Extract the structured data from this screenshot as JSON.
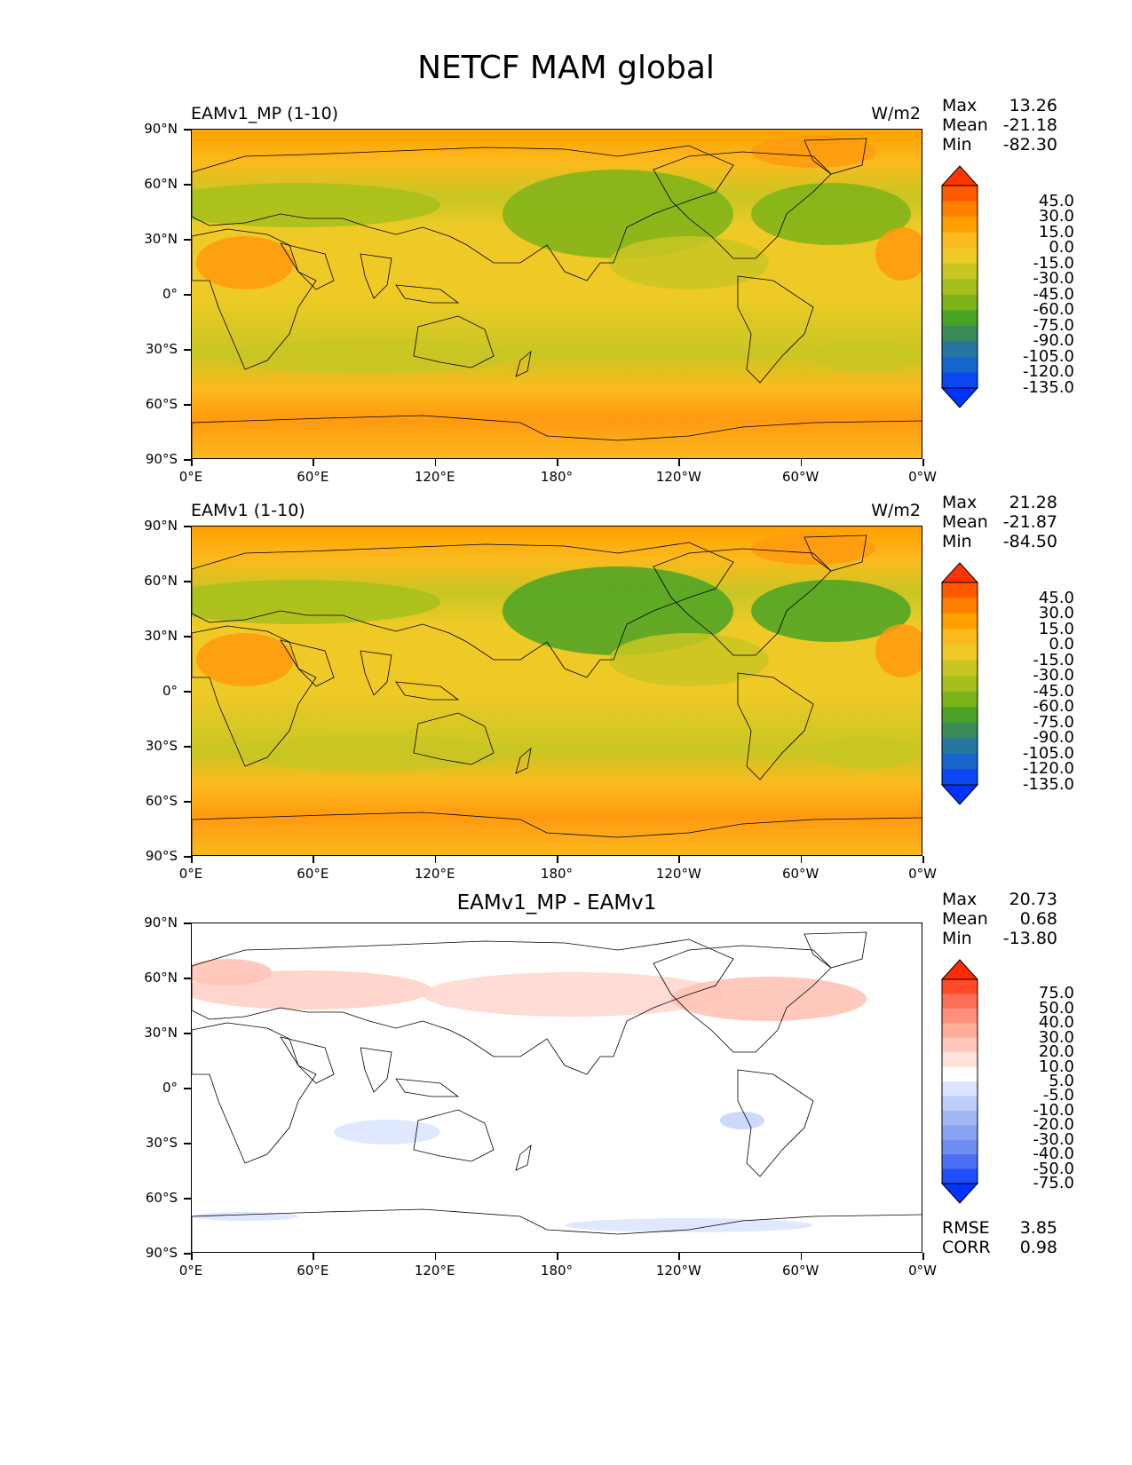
{
  "figure": {
    "title": "NETCF MAM global"
  },
  "axes": {
    "lat_labels": [
      "90°N",
      "60°N",
      "30°N",
      "0°",
      "30°S",
      "60°S",
      "90°S"
    ],
    "lon_labels": [
      "0°E",
      "60°E",
      "120°E",
      "180°",
      "120°W",
      "60°W",
      "0°W"
    ]
  },
  "panels": [
    {
      "title_left": "EAMv1_MP (1-10)",
      "title_right": "W/m2",
      "stats": [
        {
          "label": "Max",
          "value": "13.26"
        },
        {
          "label": "Mean",
          "value": "-21.18"
        },
        {
          "label": "Min",
          "value": "-82.30"
        }
      ],
      "colorbar_labels": [
        "45.0",
        "30.0",
        "15.0",
        "0.0",
        "-15.0",
        "-30.0",
        "-45.0",
        "-60.0",
        "-75.0",
        "-90.0",
        "-105.0",
        "-120.0",
        "-135.0"
      ],
      "colorbar_colors": [
        "#ff3300",
        "#ff5a00",
        "#ff7f00",
        "#ffa000",
        "#fbba1e",
        "#efca26",
        "#c9c623",
        "#a6bf1c",
        "#7db319",
        "#4aa326",
        "#3a8a5a",
        "#2677a0",
        "#1565cc",
        "#0b46f0",
        "#0033ff"
      ]
    },
    {
      "title_left": "EAMv1 (1-10)",
      "title_right": "W/m2",
      "stats": [
        {
          "label": "Max",
          "value": "21.28"
        },
        {
          "label": "Mean",
          "value": "-21.87"
        },
        {
          "label": "Min",
          "value": "-84.50"
        }
      ],
      "colorbar_labels": [
        "45.0",
        "30.0",
        "15.0",
        "0.0",
        "-15.0",
        "-30.0",
        "-45.0",
        "-60.0",
        "-75.0",
        "-90.0",
        "-105.0",
        "-120.0",
        "-135.0"
      ],
      "colorbar_colors": [
        "#ff3300",
        "#ff5a00",
        "#ff7f00",
        "#ffa000",
        "#fbba1e",
        "#efca26",
        "#c9c623",
        "#a6bf1c",
        "#7db319",
        "#4aa326",
        "#3a8a5a",
        "#2677a0",
        "#1565cc",
        "#0b46f0",
        "#0033ff"
      ]
    },
    {
      "title_center": "EAMv1_MP - EAMv1",
      "stats": [
        {
          "label": "Max",
          "value": "20.73"
        },
        {
          "label": "Mean",
          "value": "0.68"
        },
        {
          "label": "Min",
          "value": "-13.80"
        }
      ],
      "colorbar_labels": [
        "75.0",
        "50.0",
        "40.0",
        "30.0",
        "20.0",
        "10.0",
        "5.0",
        "-5.0",
        "-10.0",
        "-20.0",
        "-30.0",
        "-40.0",
        "-50.0",
        "-75.0"
      ],
      "colorbar_colors": [
        "#ff2a00",
        "#ff4a2a",
        "#ff6f55",
        "#ff8f7a",
        "#ffac9a",
        "#ffc8bd",
        "#ffe2dc",
        "#ffffff",
        "#dce4ff",
        "#c0cffa",
        "#a3b6f5",
        "#8aa2f2",
        "#6f8cf0",
        "#4a6ef4",
        "#1f4dfa",
        "#0033ff"
      ],
      "extra_stats": [
        {
          "label": "RMSE",
          "value": "3.85"
        },
        {
          "label": "CORR",
          "value": "0.98"
        }
      ]
    }
  ]
}
